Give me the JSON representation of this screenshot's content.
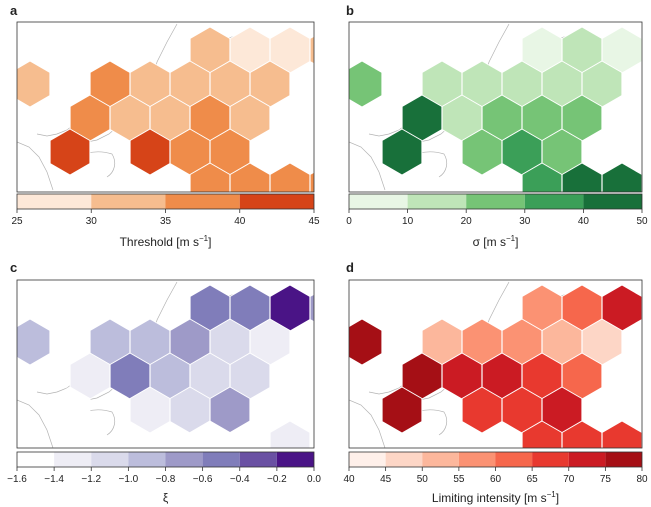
{
  "chart_data": [
    {
      "type": "heatmap",
      "panel_label": "a",
      "colorbar": {
        "label": "Threshold [m s",
        "label_sup": "−1",
        "label_end": "]",
        "ticks": [
          25,
          30,
          35,
          40,
          45
        ],
        "range": [
          25,
          45
        ],
        "bins": [
          {
            "from": 25,
            "to": 30,
            "color": "#fde8d8"
          },
          {
            "from": 30,
            "to": 35,
            "color": "#f6bd8f"
          },
          {
            "from": 35,
            "to": 40,
            "color": "#ef8c4a"
          },
          {
            "from": 40,
            "to": 45,
            "color": "#d64418"
          }
        ]
      },
      "cells": [
        {
          "col": 3,
          "row": 0,
          "value": 32
        },
        {
          "col": 4,
          "row": 0,
          "value": 27
        },
        {
          "col": 5,
          "row": 0,
          "value": 27
        },
        {
          "col": 6,
          "row": 0,
          "value": 32
        },
        {
          "col": -1,
          "row": 1,
          "value": 33
        },
        {
          "col": 1,
          "row": 1,
          "value": 38
        },
        {
          "col": 2,
          "row": 1,
          "value": 32
        },
        {
          "col": 3,
          "row": 1,
          "value": 32
        },
        {
          "col": 4,
          "row": 1,
          "value": 32
        },
        {
          "col": 5,
          "row": 1,
          "value": 32
        },
        {
          "col": 0,
          "row": 2,
          "value": 37
        },
        {
          "col": 1,
          "row": 2,
          "value": 32
        },
        {
          "col": 2,
          "row": 2,
          "value": 32
        },
        {
          "col": 3,
          "row": 2,
          "value": 38
        },
        {
          "col": 4,
          "row": 2,
          "value": 32
        },
        {
          "col": 0,
          "row": 3,
          "value": 43
        },
        {
          "col": 2,
          "row": 3,
          "value": 43
        },
        {
          "col": 3,
          "row": 3,
          "value": 38
        },
        {
          "col": 4,
          "row": 3,
          "value": 37
        },
        {
          "col": 3,
          "row": 4,
          "value": 38
        },
        {
          "col": 4,
          "row": 4,
          "value": 38
        },
        {
          "col": 5,
          "row": 4,
          "value": 38
        },
        {
          "col": 6,
          "row": 4,
          "value": 38
        },
        {
          "col": 7,
          "row": 4,
          "value": 38
        }
      ]
    },
    {
      "type": "heatmap",
      "panel_label": "b",
      "colorbar": {
        "label": "σ [m s",
        "label_sup": "−1",
        "label_end": "]",
        "ticks": [
          0,
          10,
          20,
          30,
          40,
          50
        ],
        "range": [
          0,
          50
        ],
        "bins": [
          {
            "from": 0,
            "to": 10,
            "color": "#e8f6e5"
          },
          {
            "from": 10,
            "to": 20,
            "color": "#bfe5b8"
          },
          {
            "from": 20,
            "to": 30,
            "color": "#76c476"
          },
          {
            "from": 30,
            "to": 40,
            "color": "#3b9f58"
          },
          {
            "from": 40,
            "to": 50,
            "color": "#18703a"
          }
        ]
      },
      "cells": [
        {
          "col": 3,
          "row": 0,
          "value": 8
        },
        {
          "col": 4,
          "row": 0,
          "value": 15
        },
        {
          "col": 5,
          "row": 0,
          "value": 8
        },
        {
          "col": 6,
          "row": 0,
          "value": 8
        },
        {
          "col": -1,
          "row": 1,
          "value": 25
        },
        {
          "col": 1,
          "row": 1,
          "value": 15
        },
        {
          "col": 2,
          "row": 1,
          "value": 15
        },
        {
          "col": 3,
          "row": 1,
          "value": 15
        },
        {
          "col": 4,
          "row": 1,
          "value": 15
        },
        {
          "col": 5,
          "row": 1,
          "value": 15
        },
        {
          "col": 0,
          "row": 2,
          "value": 45
        },
        {
          "col": 1,
          "row": 2,
          "value": 15
        },
        {
          "col": 2,
          "row": 2,
          "value": 25
        },
        {
          "col": 3,
          "row": 2,
          "value": 25
        },
        {
          "col": 4,
          "row": 2,
          "value": 25
        },
        {
          "col": 0,
          "row": 3,
          "value": 45
        },
        {
          "col": 2,
          "row": 3,
          "value": 25
        },
        {
          "col": 3,
          "row": 3,
          "value": 35
        },
        {
          "col": 4,
          "row": 3,
          "value": 25
        },
        {
          "col": 3,
          "row": 4,
          "value": 35
        },
        {
          "col": 4,
          "row": 4,
          "value": 45
        },
        {
          "col": 5,
          "row": 4,
          "value": 45
        },
        {
          "col": 6,
          "row": 4,
          "value": 35
        },
        {
          "col": 7,
          "row": 4,
          "value": 25
        }
      ]
    },
    {
      "type": "heatmap",
      "panel_label": "c",
      "colorbar": {
        "label": "ξ",
        "label_sup": "",
        "label_end": "",
        "ticks": [
          -1.6,
          -1.4,
          -1.2,
          -1.0,
          -0.8,
          -0.6,
          -0.4,
          -0.2,
          0.0
        ],
        "tick_labels": [
          "−1.6",
          "−1.4",
          "−1.2",
          "−1.0",
          "−0.8",
          "−0.6",
          "−0.4",
          "−0.2",
          "0.0"
        ],
        "range": [
          -1.6,
          0.0
        ],
        "bins": [
          {
            "from": -1.6,
            "to": -1.4,
            "color": "#ffffff"
          },
          {
            "from": -1.4,
            "to": -1.2,
            "color": "#eeedf5"
          },
          {
            "from": -1.2,
            "to": -1.0,
            "color": "#dadaeb"
          },
          {
            "from": -1.0,
            "to": -0.8,
            "color": "#bcbddc"
          },
          {
            "from": -0.8,
            "to": -0.6,
            "color": "#9e9ac8"
          },
          {
            "from": -0.6,
            "to": -0.4,
            "color": "#807dba"
          },
          {
            "from": -0.4,
            "to": -0.2,
            "color": "#6a51a3"
          },
          {
            "from": -0.2,
            "to": 0.0,
            "color": "#4a1486"
          }
        ]
      },
      "cells": [
        {
          "col": 3,
          "row": 0,
          "value": -0.5
        },
        {
          "col": 4,
          "row": 0,
          "value": -0.5
        },
        {
          "col": 5,
          "row": 0,
          "value": -0.1
        },
        {
          "col": 6,
          "row": 0,
          "value": -0.7
        },
        {
          "col": -1,
          "row": 1,
          "value": -0.9
        },
        {
          "col": 1,
          "row": 1,
          "value": -0.9
        },
        {
          "col": 2,
          "row": 1,
          "value": -0.9
        },
        {
          "col": 3,
          "row": 1,
          "value": -0.7
        },
        {
          "col": 4,
          "row": 1,
          "value": -1.1
        },
        {
          "col": 5,
          "row": 1,
          "value": -1.3
        },
        {
          "col": 0,
          "row": 2,
          "value": -1.3
        },
        {
          "col": 1,
          "row": 2,
          "value": -0.5
        },
        {
          "col": 2,
          "row": 2,
          "value": -0.9
        },
        {
          "col": 3,
          "row": 2,
          "value": -1.1
        },
        {
          "col": 4,
          "row": 2,
          "value": -1.1
        },
        {
          "col": 0,
          "row": 3,
          "value": -1.5
        },
        {
          "col": 2,
          "row": 3,
          "value": -1.3
        },
        {
          "col": 3,
          "row": 3,
          "value": -1.1
        },
        {
          "col": 4,
          "row": 3,
          "value": -0.7
        },
        {
          "col": 3,
          "row": 4,
          "value": -1.5
        },
        {
          "col": 4,
          "row": 4,
          "value": -1.5
        },
        {
          "col": 5,
          "row": 4,
          "value": -1.3
        },
        {
          "col": 6,
          "row": 4,
          "value": -1.5
        },
        {
          "col": 7,
          "row": 4,
          "value": -1.5
        }
      ]
    },
    {
      "type": "heatmap",
      "panel_label": "d",
      "colorbar": {
        "label": "Limiting intensity [m s",
        "label_sup": "−1",
        "label_end": "]",
        "ticks": [
          40,
          45,
          50,
          55,
          60,
          65,
          70,
          75,
          80
        ],
        "range": [
          40,
          80
        ],
        "bins": [
          {
            "from": 40,
            "to": 45,
            "color": "#fff0ea"
          },
          {
            "from": 45,
            "to": 50,
            "color": "#fdd6c6"
          },
          {
            "from": 50,
            "to": 55,
            "color": "#fcb79c"
          },
          {
            "from": 55,
            "to": 60,
            "color": "#fb9273"
          },
          {
            "from": 60,
            "to": 65,
            "color": "#f6674c"
          },
          {
            "from": 65,
            "to": 70,
            "color": "#e8392f"
          },
          {
            "from": 70,
            "to": 75,
            "color": "#cb1b23"
          },
          {
            "from": 75,
            "to": 80,
            "color": "#a50f15"
          }
        ]
      },
      "cells": [
        {
          "col": 3,
          "row": 0,
          "value": 58
        },
        {
          "col": 4,
          "row": 0,
          "value": 63
        },
        {
          "col": 5,
          "row": 0,
          "value": 73
        },
        {
          "col": 6,
          "row": 0,
          "value": 43
        },
        {
          "col": -1,
          "row": 1,
          "value": 78
        },
        {
          "col": 1,
          "row": 1,
          "value": 53
        },
        {
          "col": 2,
          "row": 1,
          "value": 58
        },
        {
          "col": 3,
          "row": 1,
          "value": 58
        },
        {
          "col": 4,
          "row": 1,
          "value": 53
        },
        {
          "col": 5,
          "row": 1,
          "value": 48
        },
        {
          "col": 0,
          "row": 2,
          "value": 78
        },
        {
          "col": 1,
          "row": 2,
          "value": 73
        },
        {
          "col": 2,
          "row": 2,
          "value": 73
        },
        {
          "col": 3,
          "row": 2,
          "value": 68
        },
        {
          "col": 4,
          "row": 2,
          "value": 63
        },
        {
          "col": 0,
          "row": 3,
          "value": 78
        },
        {
          "col": 2,
          "row": 3,
          "value": 68
        },
        {
          "col": 3,
          "row": 3,
          "value": 68
        },
        {
          "col": 4,
          "row": 3,
          "value": 73
        },
        {
          "col": 3,
          "row": 4,
          "value": 68
        },
        {
          "col": 4,
          "row": 4,
          "value": 68
        },
        {
          "col": 5,
          "row": 4,
          "value": 68
        },
        {
          "col": 6,
          "row": 4,
          "value": 63
        },
        {
          "col": 7,
          "row": 4,
          "value": 53
        }
      ]
    }
  ]
}
